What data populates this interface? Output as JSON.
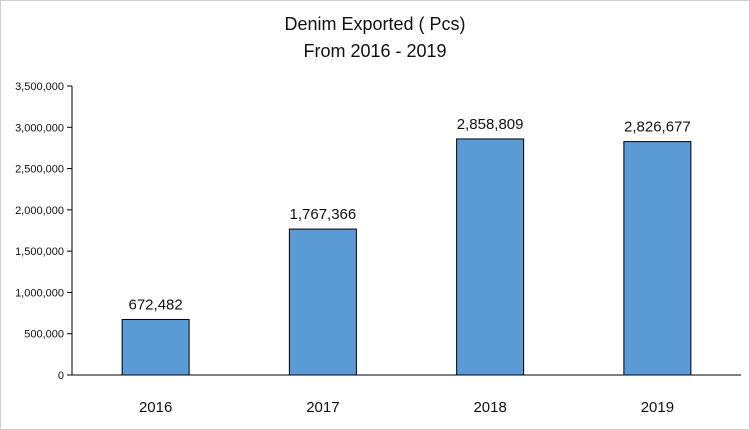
{
  "chart_data": {
    "type": "bar",
    "title": "Denim Exported ( Pcs)",
    "subtitle": "From 2016 - 2019",
    "xlabel": "",
    "ylabel": "",
    "categories": [
      "2016",
      "2017",
      "2018",
      "2019"
    ],
    "values": [
      672482,
      1767366,
      2858809,
      2826677
    ],
    "value_labels": [
      "672,482",
      "1,767,366",
      "2,858,809",
      "2,826,677"
    ],
    "ylim": [
      0,
      3500000
    ],
    "y_ticks": [
      0,
      500000,
      1000000,
      1500000,
      2000000,
      2500000,
      3000000,
      3500000
    ],
    "y_tick_labels": [
      "0",
      "500,000",
      "1,000,000",
      "1,500,000",
      "2,000,000",
      "2,500,000",
      "3,000,000",
      "3,500,000"
    ],
    "grid": false,
    "legend": "none",
    "colors": {
      "bar_fill": "#5b9bd5",
      "bar_stroke": "#000000",
      "axis": "#000000",
      "text": "#111111"
    }
  }
}
